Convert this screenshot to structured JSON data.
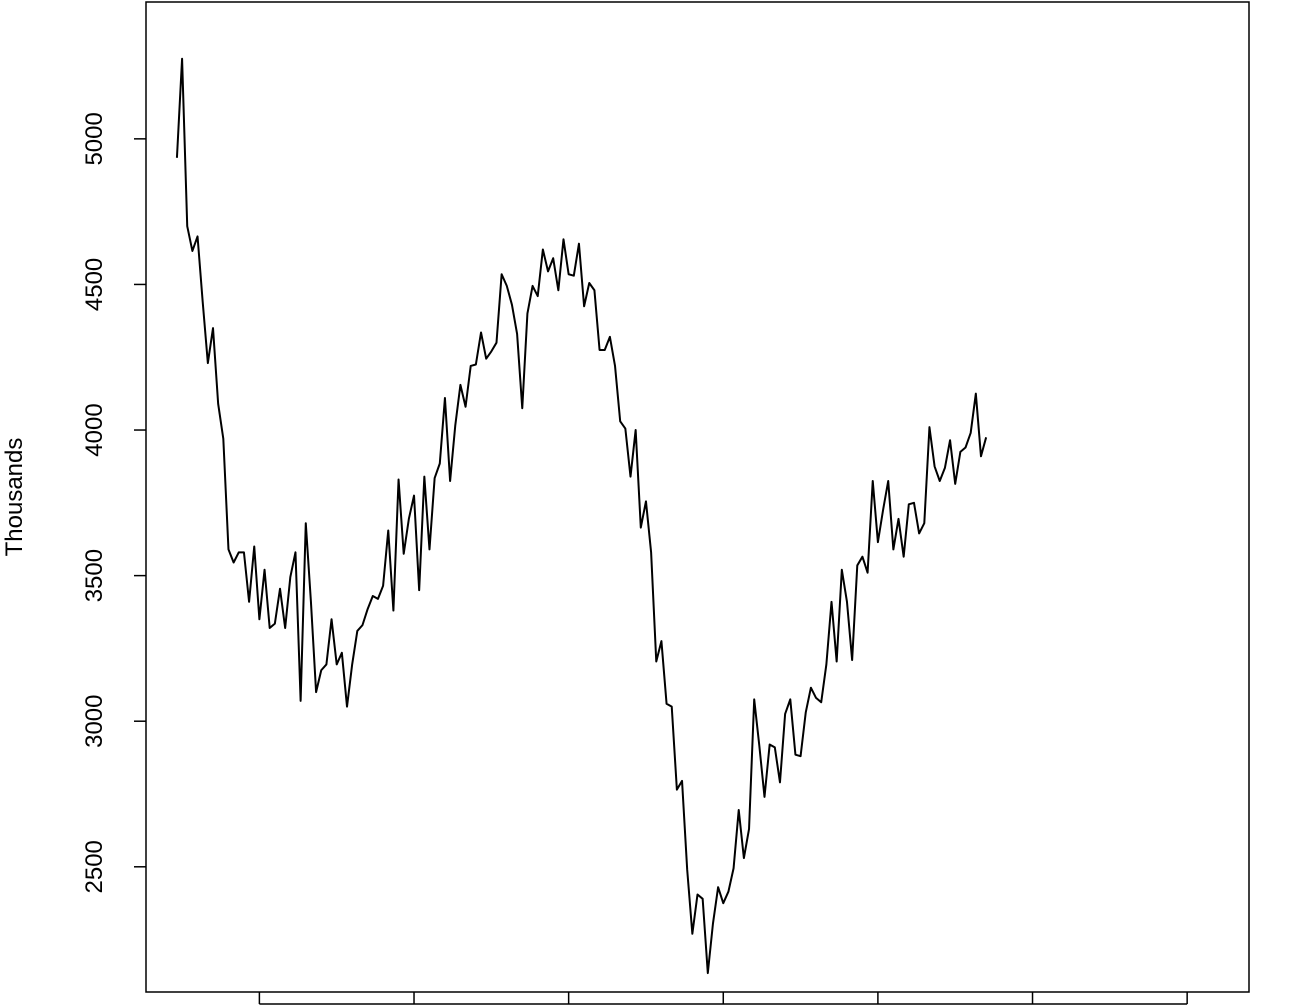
{
  "chart_data": {
    "type": "line",
    "ylabel": "Thousands",
    "ylim": [
      2070,
      5470
    ],
    "yticks": [
      2500,
      3000,
      3500,
      4000,
      4500,
      5000
    ],
    "xlim": [
      -6,
      208
    ],
    "xticks": [
      16,
      46,
      76,
      106,
      136,
      166,
      196
    ],
    "grid": false,
    "legend": "none",
    "series": [
      {
        "values": [
          4935,
          5275,
          4700,
          4615,
          4665,
          4440,
          4230,
          4350,
          4090,
          3970,
          3590,
          3545,
          3580,
          3580,
          3410,
          3600,
          3350,
          3520,
          3320,
          3335,
          3455,
          3320,
          3495,
          3580,
          3070,
          3680,
          3410,
          3100,
          3175,
          3195,
          3350,
          3195,
          3235,
          3050,
          3195,
          3310,
          3330,
          3385,
          3430,
          3420,
          3465,
          3655,
          3380,
          3830,
          3575,
          3695,
          3775,
          3450,
          3840,
          3590,
          3835,
          3885,
          4110,
          3825,
          4015,
          4155,
          4080,
          4220,
          4225,
          4335,
          4245,
          4270,
          4300,
          4535,
          4495,
          4430,
          4330,
          4075,
          4400,
          4495,
          4460,
          4620,
          4545,
          4590,
          4480,
          4655,
          4535,
          4530,
          4640,
          4425,
          4505,
          4480,
          4275,
          4275,
          4320,
          4220,
          4030,
          4005,
          3840,
          4000,
          3665,
          3755,
          3580,
          3205,
          3275,
          3060,
          3050,
          2765,
          2795,
          2490,
          2270,
          2405,
          2390,
          2135,
          2305,
          2430,
          2375,
          2415,
          2495,
          2695,
          2530,
          2630,
          3075,
          2915,
          2740,
          2920,
          2910,
          2790,
          3025,
          3075,
          2885,
          2880,
          3030,
          3115,
          3080,
          3065,
          3195,
          3410,
          3205,
          3520,
          3410,
          3210,
          3535,
          3565,
          3510,
          3825,
          3615,
          3725,
          3825,
          3590,
          3695,
          3565,
          3745,
          3750,
          3645,
          3680,
          4010,
          3875,
          3825,
          3870,
          3965,
          3815,
          3925,
          3940,
          3990,
          4125,
          3910,
          3975
        ]
      }
    ]
  }
}
